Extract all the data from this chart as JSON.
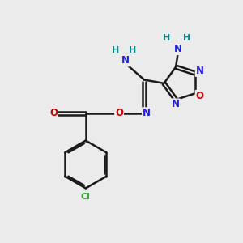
{
  "bg_color": "#ebebeb",
  "bond_color": "#1a1a1a",
  "N_color": "#2020dd",
  "O_color": "#cc0000",
  "Cl_color": "#33aa33",
  "NH_color": "#008888",
  "figsize": [
    3.0,
    3.0
  ],
  "dpi": 100,
  "xlim": [
    0,
    10
  ],
  "ylim": [
    0,
    10
  ]
}
